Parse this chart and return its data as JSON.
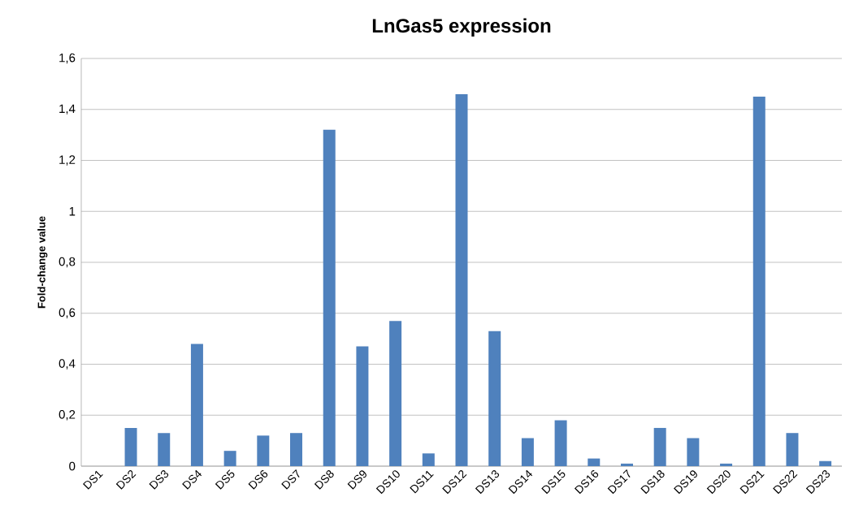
{
  "chart_data": {
    "type": "bar",
    "title": "LnGas5 expression",
    "ylabel": "Fold-change value",
    "categories": [
      "DS1",
      "DS2",
      "DS3",
      "DS4",
      "DS5",
      "DS6",
      "DS7",
      "DS8",
      "DS9",
      "DS10",
      "DS11",
      "DS12",
      "DS13",
      "DS14",
      "DS15",
      "DS16",
      "DS17",
      "DS18",
      "DS19",
      "DS20",
      "DS21",
      "DS22",
      "DS23"
    ],
    "values": [
      0,
      0.15,
      0.13,
      0.48,
      0.06,
      0.12,
      0.13,
      1.32,
      0.47,
      0.57,
      0.05,
      1.46,
      0.53,
      0.11,
      0.18,
      0.03,
      0.01,
      0.15,
      0.11,
      0.01,
      1.45,
      0.13,
      0.02
    ],
    "color": "#4f81bd",
    "ylim": [
      0,
      1.6
    ],
    "yticks": [
      0,
      {
        "value": 0.2,
        "label": "0,2"
      },
      {
        "value": 0.4,
        "label": "0,4"
      },
      {
        "value": 0.6,
        "label": "0,6"
      },
      {
        "value": 0.8,
        "label": "0,8"
      },
      1,
      {
        "value": 1.2,
        "label": "1,2"
      },
      {
        "value": 1.4,
        "label": "1,4"
      },
      {
        "value": 1.6,
        "label": "1,6"
      }
    ],
    "grid": "y"
  }
}
